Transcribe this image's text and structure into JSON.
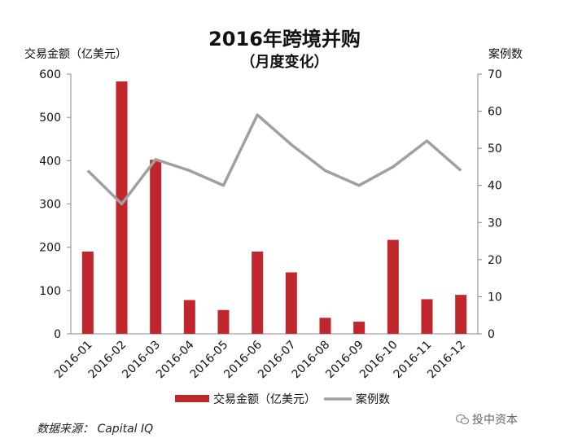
{
  "chart_data": {
    "type": "bar+line",
    "title": "2016年跨境并购",
    "subtitle": "（月度变化）",
    "categories": [
      "2016-01",
      "2016-02",
      "2016-03",
      "2016-04",
      "2016-05",
      "2016-06",
      "2016-07",
      "2016-08",
      "2016-09",
      "2016-10",
      "2016-11",
      "2016-12"
    ],
    "series": [
      {
        "name": "交易金额（亿美元）",
        "type": "bar",
        "axis": "left",
        "color": "#c0272d",
        "values": [
          190,
          583,
          402,
          78,
          55,
          190,
          142,
          37,
          28,
          217,
          80,
          90
        ]
      },
      {
        "name": "案例数",
        "type": "line",
        "axis": "right",
        "color": "#a0a0a0",
        "values": [
          44,
          35,
          47,
          44,
          40,
          59,
          51,
          44,
          40,
          45,
          52,
          44
        ]
      }
    ],
    "ylabel_left": "交易金额（亿美元）",
    "ylabel_right": "案例数",
    "ylim_left": [
      0,
      600
    ],
    "ylim_right": [
      0,
      70
    ],
    "yticks_left": [
      0,
      100,
      200,
      300,
      400,
      500,
      600
    ],
    "yticks_right": [
      0,
      10,
      20,
      30,
      40,
      50,
      60,
      70
    ],
    "legend_position": "bottom",
    "grid": false
  },
  "source": "数据来源： Capital IQ",
  "watermark": "投中资本"
}
